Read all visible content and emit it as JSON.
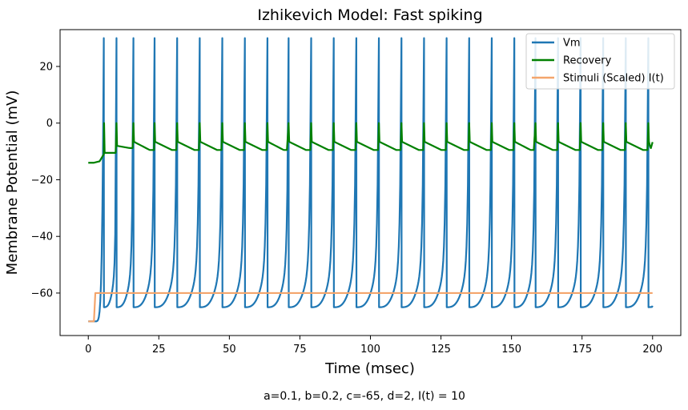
{
  "chart_data": {
    "type": "line",
    "title": "Izhikevich Model: Fast spiking",
    "xlabel": "Time (msec)",
    "ylabel": "Membrane Potential (mV)",
    "caption": "a=0.1, b=0.2, c=-65, d=2, I(t) = 10",
    "xlim": [
      -10,
      210
    ],
    "ylim": [
      -75,
      33
    ],
    "xticks": [
      0,
      25,
      50,
      75,
      100,
      125,
      150,
      175,
      200
    ],
    "yticks": [
      -60,
      -40,
      -20,
      0,
      20
    ],
    "legend_position": "top-right",
    "grid": false,
    "spike_times": [
      5.5,
      10,
      16,
      23.5,
      31.5,
      39.5,
      47.5,
      55.5,
      63.5,
      71,
      79,
      87,
      95,
      103,
      111,
      119,
      127,
      135,
      143,
      151,
      158.5,
      166.5,
      174.5,
      182.5,
      190.5,
      198.5
    ],
    "series": [
      {
        "name": "Vm",
        "color": "#1f77b4",
        "t_end": 200,
        "initial": -70,
        "peak": 30,
        "reset": -65,
        "threshold": -45,
        "end_value": -64.5
      },
      {
        "name": "Recovery",
        "color": "#008000",
        "t_end": 200,
        "x": [
          0,
          2,
          4,
          5.5
        ],
        "y": [
          -14,
          -14,
          -13.5,
          -11
        ],
        "after_spike_1": -10.5,
        "decay_floor": -9.5,
        "end_value": -6.7
      },
      {
        "name": "Stimuli (Scaled) I(t)",
        "color": "#f4a56c",
        "x": [
          0,
          2,
          2.5,
          200
        ],
        "y": [
          -70,
          -70,
          -60,
          -60
        ]
      }
    ]
  }
}
